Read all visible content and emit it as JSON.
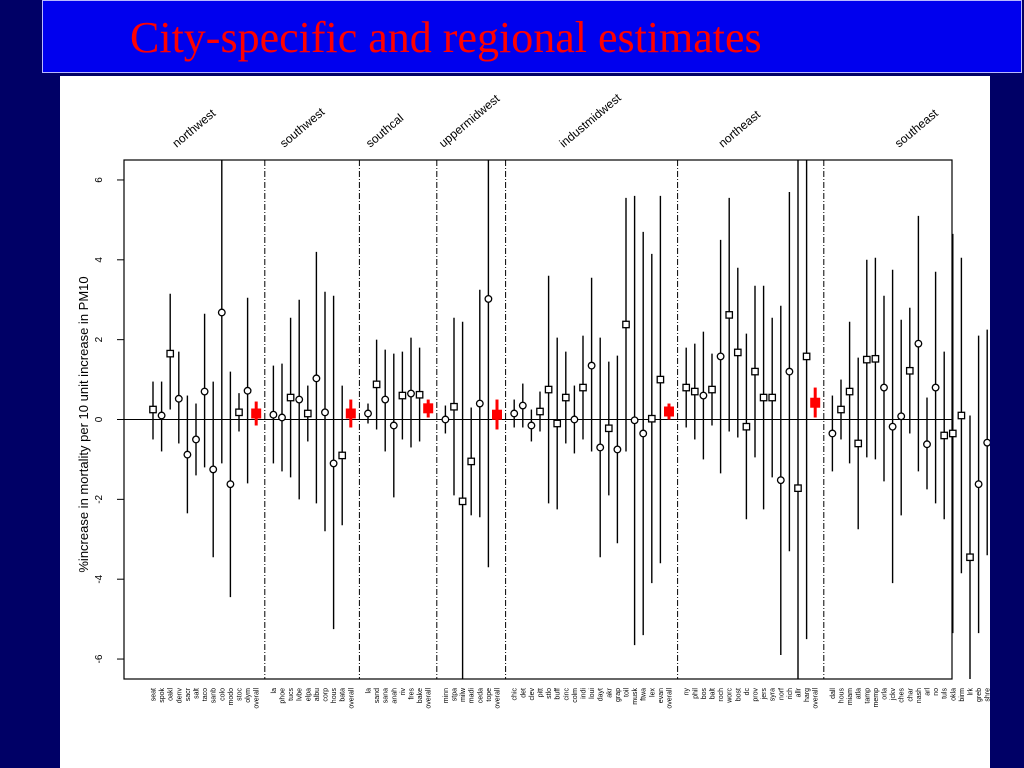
{
  "slide": {
    "title": "City-specific and regional estimates"
  },
  "chart_data": {
    "type": "scatter",
    "subtype": "point-estimate-with-confidence-interval",
    "title": "",
    "ylabel": "%increase in mortality per 10 unit increase in PM10",
    "xlabel": "",
    "ylim": [
      -6.5,
      6.5
    ],
    "yticks": [
      -6,
      -4,
      -2,
      0,
      2,
      4,
      6
    ],
    "reference_line_y": 0,
    "colors": {
      "city": "#000000",
      "overall": "#ff0000"
    },
    "regions": [
      {
        "name": "northwest",
        "cities": [
          {
            "label": "seat",
            "value": 0.25,
            "lo": -0.5,
            "hi": 0.95,
            "marker": "square"
          },
          {
            "label": "spok",
            "value": 0.1,
            "lo": -0.8,
            "hi": 0.95,
            "marker": "circle"
          },
          {
            "label": "oakl",
            "value": 1.65,
            "lo": 0.25,
            "hi": 3.15,
            "marker": "square"
          },
          {
            "label": "denv",
            "value": 0.52,
            "lo": -0.6,
            "hi": 1.7,
            "marker": "circle"
          },
          {
            "label": "sacr",
            "value": -0.88,
            "lo": -2.35,
            "hi": 0.6,
            "marker": "circle"
          },
          {
            "label": "salt",
            "value": -0.5,
            "lo": -1.4,
            "hi": 0.4,
            "marker": "circle"
          },
          {
            "label": "taco",
            "value": 0.7,
            "lo": -1.2,
            "hi": 2.65,
            "marker": "circle"
          },
          {
            "label": "sanb",
            "value": -1.25,
            "lo": -3.45,
            "hi": 0.95,
            "marker": "circle"
          },
          {
            "label": "colo",
            "value": 2.68,
            "lo": -1.1,
            "hi": 6.5,
            "marker": "circle"
          },
          {
            "label": "modo",
            "value": -1.62,
            "lo": -4.45,
            "hi": 1.2,
            "marker": "circle"
          },
          {
            "label": "stoc",
            "value": 0.18,
            "lo": -0.3,
            "hi": 0.66,
            "marker": "square"
          },
          {
            "label": "olym",
            "value": 0.72,
            "lo": -1.6,
            "hi": 3.05,
            "marker": "circle"
          }
        ],
        "overall": {
          "label": "overall",
          "value": 0.15,
          "lo": -0.15,
          "hi": 0.45
        }
      },
      {
        "name": "southwest",
        "cities": [
          {
            "label": "la",
            "value": 0.12,
            "lo": -1.1,
            "hi": 1.35,
            "marker": "circle"
          },
          {
            "label": "phoe",
            "value": 0.05,
            "lo": -1.3,
            "hi": 1.4,
            "marker": "circle"
          },
          {
            "label": "tucs",
            "value": 0.55,
            "lo": -1.45,
            "hi": 2.55,
            "marker": "square"
          },
          {
            "label": "lvbe",
            "value": 0.5,
            "lo": -2.0,
            "hi": 3.0,
            "marker": "circle"
          },
          {
            "label": "elpa",
            "value": 0.15,
            "lo": -0.55,
            "hi": 0.85,
            "marker": "square"
          },
          {
            "label": "albu",
            "value": 1.03,
            "lo": -2.1,
            "hi": 4.2,
            "marker": "circle"
          },
          {
            "label": "corp",
            "value": 0.18,
            "lo": -2.8,
            "hi": 3.2,
            "marker": "circle"
          },
          {
            "label": "hous",
            "value": -1.1,
            "lo": -5.25,
            "hi": 3.1,
            "marker": "circle"
          },
          {
            "label": "bata",
            "value": -0.9,
            "lo": -2.65,
            "hi": 0.85,
            "marker": "square"
          }
        ],
        "overall": {
          "label": "overall",
          "value": 0.15,
          "lo": -0.2,
          "hi": 0.5
        }
      },
      {
        "name": "southcal",
        "cities": [
          {
            "label": "la",
            "value": 0.15,
            "lo": -0.1,
            "hi": 0.4,
            "marker": "circle"
          },
          {
            "label": "sand",
            "value": 0.88,
            "lo": -0.25,
            "hi": 2.0,
            "marker": "square"
          },
          {
            "label": "sana",
            "value": 0.5,
            "lo": -0.8,
            "hi": 1.75,
            "marker": "circle"
          },
          {
            "label": "anah",
            "value": -0.15,
            "lo": -1.95,
            "hi": 1.65,
            "marker": "circle"
          },
          {
            "label": "riv",
            "value": 0.6,
            "lo": -0.5,
            "hi": 1.7,
            "marker": "square"
          },
          {
            "label": "fres",
            "value": 0.65,
            "lo": -0.7,
            "hi": 2.05,
            "marker": "circle"
          },
          {
            "label": "bake",
            "value": 0.62,
            "lo": -0.55,
            "hi": 1.8,
            "marker": "square"
          }
        ],
        "overall": {
          "label": "overall",
          "value": 0.28,
          "lo": 0.05,
          "hi": 0.5
        }
      },
      {
        "name": "uppermidwest",
        "cities": [
          {
            "label": "minn",
            "value": 0.0,
            "lo": -0.35,
            "hi": 0.35,
            "marker": "circle"
          },
          {
            "label": "stpa",
            "value": 0.32,
            "lo": -1.9,
            "hi": 2.55,
            "marker": "square"
          },
          {
            "label": "milw",
            "value": -2.05,
            "lo": -6.5,
            "hi": 2.45,
            "marker": "square"
          },
          {
            "label": "madi",
            "value": -1.05,
            "lo": -2.4,
            "hi": 0.3,
            "marker": "square"
          },
          {
            "label": "ceda",
            "value": 0.4,
            "lo": -2.45,
            "hi": 3.25,
            "marker": "circle"
          },
          {
            "label": "tope",
            "value": 3.02,
            "lo": -3.7,
            "hi": 6.5,
            "marker": "circle"
          }
        ],
        "overall": {
          "label": "overall",
          "value": 0.12,
          "lo": -0.25,
          "hi": 0.5
        }
      },
      {
        "name": "industmidwest",
        "cities": [
          {
            "label": "chic",
            "value": 0.15,
            "lo": -0.2,
            "hi": 0.5,
            "marker": "circle"
          },
          {
            "label": "det",
            "value": 0.35,
            "lo": -0.2,
            "hi": 0.9,
            "marker": "circle"
          },
          {
            "label": "clev",
            "value": -0.15,
            "lo": -0.55,
            "hi": 0.25,
            "marker": "circle"
          },
          {
            "label": "pitt",
            "value": 0.2,
            "lo": -0.3,
            "hi": 0.7,
            "marker": "square"
          },
          {
            "label": "stlo",
            "value": 0.75,
            "lo": -2.1,
            "hi": 3.6,
            "marker": "square"
          },
          {
            "label": "buff",
            "value": -0.1,
            "lo": -2.25,
            "hi": 2.05,
            "marker": "square"
          },
          {
            "label": "cinc",
            "value": 0.55,
            "lo": -0.6,
            "hi": 1.7,
            "marker": "square"
          },
          {
            "label": "colm",
            "value": 0.0,
            "lo": -0.85,
            "hi": 0.85,
            "marker": "circle"
          },
          {
            "label": "indi",
            "value": 0.8,
            "lo": -0.5,
            "hi": 2.1,
            "marker": "square"
          },
          {
            "label": "loui",
            "value": 1.35,
            "lo": -0.8,
            "hi": 3.55,
            "marker": "circle"
          },
          {
            "label": "dayt",
            "value": -0.7,
            "lo": -3.45,
            "hi": 2.05,
            "marker": "circle"
          },
          {
            "label": "akr",
            "value": -0.22,
            "lo": -1.9,
            "hi": 1.45,
            "marker": "square"
          },
          {
            "label": "grap",
            "value": -0.75,
            "lo": -3.1,
            "hi": 1.6,
            "marker": "circle"
          },
          {
            "label": "toil",
            "value": 2.38,
            "lo": -0.8,
            "hi": 5.55,
            "marker": "square"
          },
          {
            "label": "musk",
            "value": -0.02,
            "lo": -5.65,
            "hi": 5.6,
            "marker": "circle"
          },
          {
            "label": "ftwa",
            "value": -0.35,
            "lo": -5.4,
            "hi": 4.7,
            "marker": "circle"
          },
          {
            "label": "lex",
            "value": 0.02,
            "lo": -4.1,
            "hi": 4.15,
            "marker": "square"
          },
          {
            "label": "evan",
            "value": 1.0,
            "lo": -3.6,
            "hi": 5.6,
            "marker": "square"
          }
        ],
        "overall": {
          "label": "overall",
          "value": 0.2,
          "lo": 0.0,
          "hi": 0.4
        }
      },
      {
        "name": "northeast",
        "cities": [
          {
            "label": "ny",
            "value": 0.8,
            "lo": -0.2,
            "hi": 1.8,
            "marker": "square"
          },
          {
            "label": "phil",
            "value": 0.7,
            "lo": -0.5,
            "hi": 1.9,
            "marker": "square"
          },
          {
            "label": "bos",
            "value": 0.6,
            "lo": -1.0,
            "hi": 2.2,
            "marker": "circle"
          },
          {
            "label": "balt",
            "value": 0.75,
            "lo": -0.15,
            "hi": 1.65,
            "marker": "square"
          },
          {
            "label": "roch",
            "value": 1.58,
            "lo": -1.35,
            "hi": 4.5,
            "marker": "circle"
          },
          {
            "label": "worc",
            "value": 2.62,
            "lo": -0.3,
            "hi": 5.55,
            "marker": "square"
          },
          {
            "label": "bost",
            "value": 1.68,
            "lo": -0.45,
            "hi": 3.8,
            "marker": "square"
          },
          {
            "label": "dc",
            "value": -0.18,
            "lo": -2.5,
            "hi": 2.15,
            "marker": "square"
          },
          {
            "label": "prov",
            "value": 1.2,
            "lo": -0.95,
            "hi": 3.35,
            "marker": "square"
          },
          {
            "label": "jers",
            "value": 0.55,
            "lo": -2.25,
            "hi": 3.35,
            "marker": "square"
          },
          {
            "label": "syra",
            "value": 0.55,
            "lo": -1.45,
            "hi": 2.55,
            "marker": "square"
          },
          {
            "label": "norf",
            "value": -1.52,
            "lo": -5.9,
            "hi": 2.85,
            "marker": "circle"
          },
          {
            "label": "rich",
            "value": 1.2,
            "lo": -3.3,
            "hi": 5.7,
            "marker": "circle"
          },
          {
            "label": "allr",
            "value": -1.72,
            "lo": -6.5,
            "hi": 6.5,
            "marker": "square"
          },
          {
            "label": "harg",
            "value": 1.58,
            "lo": -5.5,
            "hi": 6.5,
            "marker": "square"
          }
        ],
        "overall": {
          "label": "overall",
          "value": 0.42,
          "lo": 0.05,
          "hi": 0.8
        }
      },
      {
        "name": "southeast",
        "cities": [
          {
            "label": "dall",
            "value": -0.35,
            "lo": -1.3,
            "hi": 0.6,
            "marker": "circle"
          },
          {
            "label": "hous",
            "value": 0.25,
            "lo": -0.5,
            "hi": 1.0,
            "marker": "square"
          },
          {
            "label": "miam",
            "value": 0.7,
            "lo": -1.1,
            "hi": 2.45,
            "marker": "square"
          },
          {
            "label": "atla",
            "value": -0.6,
            "lo": -2.75,
            "hi": 1.55,
            "marker": "square"
          },
          {
            "label": "tamp",
            "value": 1.5,
            "lo": -0.95,
            "hi": 4.0,
            "marker": "square"
          },
          {
            "label": "memp",
            "value": 1.52,
            "lo": -1.0,
            "hi": 4.05,
            "marker": "square"
          },
          {
            "label": "orla",
            "value": 0.8,
            "lo": -1.55,
            "hi": 3.1,
            "marker": "circle"
          },
          {
            "label": "jckv",
            "value": -0.18,
            "lo": -4.1,
            "hi": 3.75,
            "marker": "circle"
          },
          {
            "label": "ches",
            "value": 0.08,
            "lo": -2.4,
            "hi": 2.5,
            "marker": "circle"
          },
          {
            "label": "char",
            "value": 1.22,
            "lo": -0.35,
            "hi": 2.8,
            "marker": "square"
          },
          {
            "label": "nash",
            "value": 1.9,
            "lo": -1.3,
            "hi": 5.1,
            "marker": "circle"
          },
          {
            "label": "arl",
            "value": -0.62,
            "lo": -1.75,
            "hi": 0.55,
            "marker": "circle"
          },
          {
            "label": "no",
            "value": 0.8,
            "lo": -2.1,
            "hi": 3.7,
            "marker": "circle"
          },
          {
            "label": "tuls",
            "value": -0.4,
            "lo": -2.5,
            "hi": 1.7,
            "marker": "square"
          },
          {
            "label": "okla",
            "value": -0.35,
            "lo": -5.35,
            "hi": 4.65,
            "marker": "square"
          },
          {
            "label": "birm",
            "value": 0.1,
            "lo": -3.85,
            "hi": 4.05,
            "marker": "square"
          },
          {
            "label": "lrk",
            "value": -3.45,
            "lo": -6.5,
            "hi": 0.1,
            "marker": "square"
          },
          {
            "label": "greb",
            "value": -1.62,
            "lo": -5.35,
            "hi": 2.1,
            "marker": "circle"
          },
          {
            "label": "shre",
            "value": -0.58,
            "lo": -3.4,
            "hi": 2.25,
            "marker": "circle"
          },
          {
            "label": "jksn",
            "value": 2.42,
            "lo": -1.8,
            "hi": 6.5,
            "marker": "square"
          },
          {
            "label": "hunt",
            "value": -2.02,
            "lo": -6.5,
            "hi": 2.5,
            "marker": "square"
          },
          {
            "label": "csp",
            "value": 0.8,
            "lo": -2.05,
            "hi": 3.65,
            "marker": "circle"
          }
        ],
        "overall": {
          "label": "overall",
          "value": 0.18,
          "lo": -0.1,
          "hi": 0.45
        }
      }
    ],
    "grand_overall": {
      "label": "overall",
      "value": 0.18,
      "lo": 0.05,
      "hi": 0.31
    }
  }
}
